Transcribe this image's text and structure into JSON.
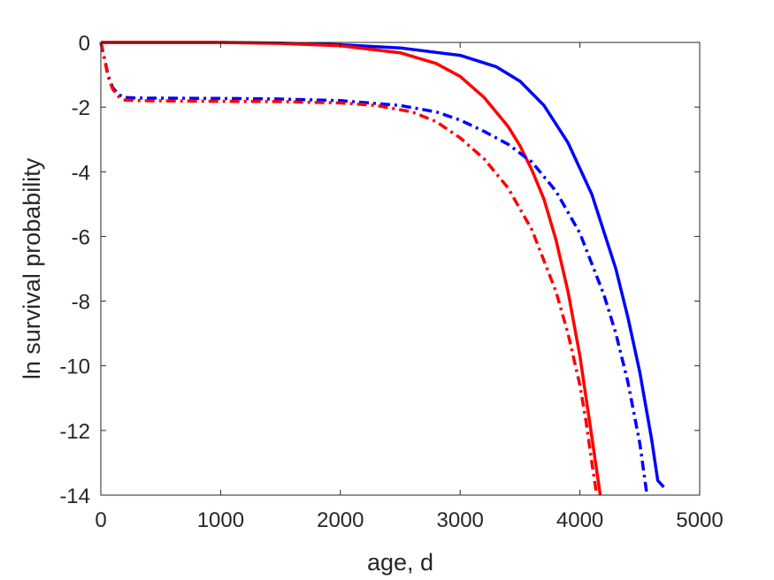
{
  "chart_data": {
    "type": "line",
    "title": "",
    "xlabel": "age, d",
    "ylabel": "ln survival probability",
    "xlim": [
      0,
      5000
    ],
    "ylim": [
      -14,
      0
    ],
    "xticks": [
      0,
      1000,
      2000,
      3000,
      4000,
      5000
    ],
    "yticks": [
      0,
      -2,
      -4,
      -6,
      -8,
      -10,
      -12,
      -14
    ],
    "xtick_labels": [
      "0",
      "1000",
      "2000",
      "3000",
      "4000",
      "5000"
    ],
    "ytick_labels": [
      "0",
      "-2",
      "-4",
      "-6",
      "-8",
      "-10",
      "-12",
      "-14"
    ],
    "grid": false,
    "legend": "none",
    "series": [
      {
        "color": "#0000ff",
        "style": "solid",
        "points": [
          [
            0,
            0
          ],
          [
            500,
            0
          ],
          [
            1000,
            0
          ],
          [
            1500,
            -0.02
          ],
          [
            2000,
            -0.07
          ],
          [
            2500,
            -0.17
          ],
          [
            3000,
            -0.4
          ],
          [
            3300,
            -0.75
          ],
          [
            3500,
            -1.2
          ],
          [
            3700,
            -1.95
          ],
          [
            3900,
            -3.1
          ],
          [
            4100,
            -4.7
          ],
          [
            4300,
            -7.0
          ],
          [
            4400,
            -8.5
          ],
          [
            4500,
            -10.2
          ],
          [
            4600,
            -12.3
          ],
          [
            4650,
            -13.55
          ],
          [
            4700,
            -13.75
          ]
        ]
      },
      {
        "color": "#ff0000",
        "style": "solid",
        "points": [
          [
            0,
            0
          ],
          [
            500,
            0
          ],
          [
            1000,
            0
          ],
          [
            1500,
            -0.03
          ],
          [
            2000,
            -0.1
          ],
          [
            2500,
            -0.32
          ],
          [
            2800,
            -0.65
          ],
          [
            3000,
            -1.05
          ],
          [
            3200,
            -1.7
          ],
          [
            3400,
            -2.6
          ],
          [
            3500,
            -3.2
          ],
          [
            3600,
            -3.95
          ],
          [
            3700,
            -4.85
          ],
          [
            3800,
            -6.1
          ],
          [
            3900,
            -7.7
          ],
          [
            4000,
            -9.7
          ],
          [
            4100,
            -12.2
          ],
          [
            4170,
            -14.0
          ]
        ]
      },
      {
        "color": "#0000ff",
        "style": "dashdot",
        "points": [
          [
            0,
            0
          ],
          [
            30,
            -0.5
          ],
          [
            60,
            -1.0
          ],
          [
            100,
            -1.4
          ],
          [
            150,
            -1.62
          ],
          [
            200,
            -1.7
          ],
          [
            300,
            -1.72
          ],
          [
            1000,
            -1.73
          ],
          [
            1500,
            -1.75
          ],
          [
            2000,
            -1.8
          ],
          [
            2500,
            -1.95
          ],
          [
            2800,
            -2.15
          ],
          [
            3000,
            -2.4
          ],
          [
            3200,
            -2.75
          ],
          [
            3400,
            -3.15
          ],
          [
            3600,
            -3.7
          ],
          [
            3800,
            -4.6
          ],
          [
            4000,
            -5.9
          ],
          [
            4200,
            -7.8
          ],
          [
            4300,
            -9.0
          ],
          [
            4400,
            -10.5
          ],
          [
            4500,
            -12.4
          ],
          [
            4560,
            -14.0
          ]
        ]
      },
      {
        "color": "#ff0000",
        "style": "dashdot",
        "points": [
          [
            0,
            0
          ],
          [
            30,
            -0.5
          ],
          [
            60,
            -1.05
          ],
          [
            100,
            -1.45
          ],
          [
            150,
            -1.68
          ],
          [
            200,
            -1.78
          ],
          [
            300,
            -1.8
          ],
          [
            1000,
            -1.82
          ],
          [
            1500,
            -1.83
          ],
          [
            2000,
            -1.87
          ],
          [
            2300,
            -1.95
          ],
          [
            2600,
            -2.15
          ],
          [
            2800,
            -2.45
          ],
          [
            3000,
            -2.95
          ],
          [
            3200,
            -3.6
          ],
          [
            3400,
            -4.5
          ],
          [
            3600,
            -5.8
          ],
          [
            3800,
            -7.7
          ],
          [
            3900,
            -9.0
          ],
          [
            4000,
            -10.6
          ],
          [
            4050,
            -11.7
          ],
          [
            4100,
            -13.0
          ],
          [
            4140,
            -14.0
          ]
        ]
      }
    ]
  }
}
